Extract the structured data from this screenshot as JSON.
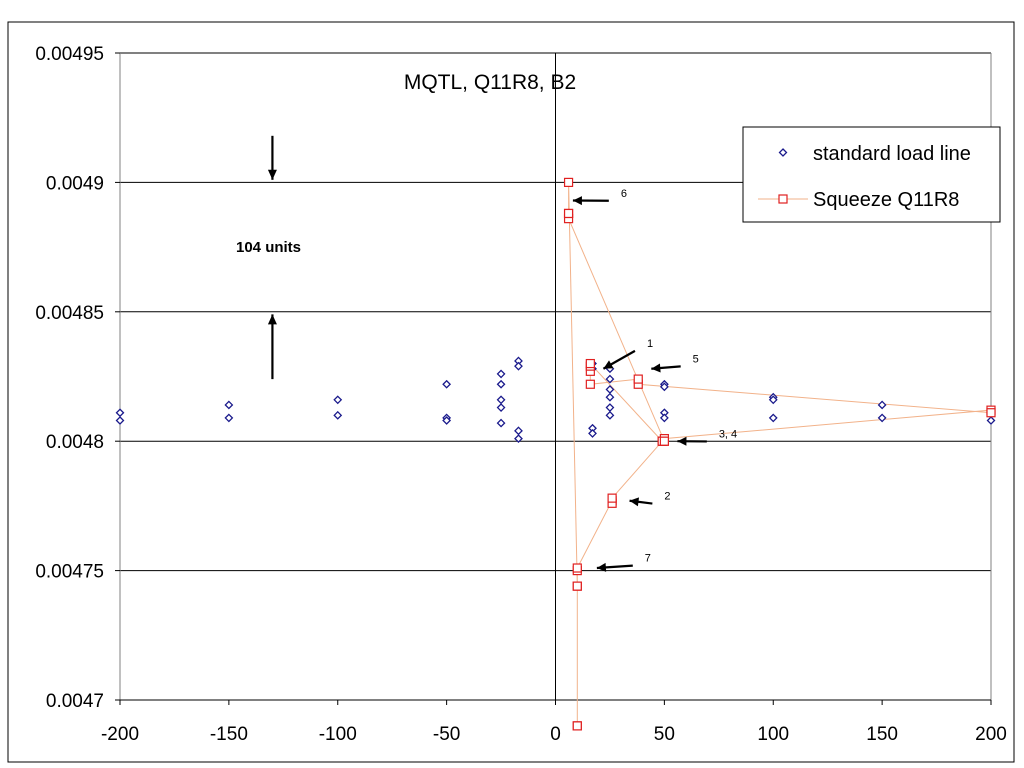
{
  "chart_data": {
    "type": "scatter",
    "title": "MQTL, Q11R8, B2",
    "xlabel": "",
    "ylabel": "",
    "xlim": [
      -200,
      200
    ],
    "ylim": [
      0.0047,
      0.00495
    ],
    "xticks": [
      "-200",
      "-150",
      "-100",
      "-50",
      "0",
      "50",
      "100",
      "150",
      "200"
    ],
    "yticks": [
      "0.0047",
      "0.00475",
      "0.0048",
      "0.00485",
      "0.0049",
      "0.00495"
    ],
    "grid": "horizontal",
    "legend_position": "top-right",
    "series": [
      {
        "name": "standard load line",
        "marker": "diamond",
        "color": "#1a1a8c",
        "line": false,
        "points": [
          [
            -200,
            0.004811
          ],
          [
            -200,
            0.004808
          ],
          [
            -150,
            0.004814
          ],
          [
            -150,
            0.004809
          ],
          [
            -100,
            0.004816
          ],
          [
            -100,
            0.00481
          ],
          [
            -50,
            0.004822
          ],
          [
            -50,
            0.004809
          ],
          [
            -50,
            0.004808
          ],
          [
            -25,
            0.004826
          ],
          [
            -25,
            0.004822
          ],
          [
            -25,
            0.004816
          ],
          [
            -25,
            0.004813
          ],
          [
            -25,
            0.004807
          ],
          [
            -17,
            0.004831
          ],
          [
            -17,
            0.004829
          ],
          [
            -17,
            0.004804
          ],
          [
            -17,
            0.004801
          ],
          [
            17,
            0.00483
          ],
          [
            17,
            0.004828
          ],
          [
            17,
            0.004805
          ],
          [
            17,
            0.004803
          ],
          [
            25,
            0.004828
          ],
          [
            25,
            0.004824
          ],
          [
            25,
            0.00482
          ],
          [
            25,
            0.004817
          ],
          [
            25,
            0.004813
          ],
          [
            25,
            0.00481
          ],
          [
            50,
            0.004822
          ],
          [
            50,
            0.004821
          ],
          [
            50,
            0.004811
          ],
          [
            50,
            0.004809
          ],
          [
            100,
            0.004817
          ],
          [
            100,
            0.004816
          ],
          [
            100,
            0.004809
          ],
          [
            150,
            0.004814
          ],
          [
            150,
            0.004809
          ],
          [
            200,
            0.004811
          ],
          [
            200,
            0.004808
          ]
        ]
      },
      {
        "name": "Squeeze Q11R8",
        "marker": "square",
        "color": "#e02020",
        "line": true,
        "lineColor": "#f2b28a",
        "points": [
          [
            10,
            0.00469
          ],
          [
            10,
            0.004744
          ],
          [
            10,
            0.00475
          ],
          [
            10,
            0.004751
          ],
          [
            26,
            0.004777
          ],
          [
            26,
            0.004776
          ],
          [
            26,
            0.004778
          ],
          [
            49,
            0.0048
          ],
          [
            50,
            0.0048
          ],
          [
            50,
            0.004801
          ],
          [
            200,
            0.004812
          ],
          [
            200,
            0.004811
          ],
          [
            38,
            0.004822
          ],
          [
            38,
            0.004824
          ],
          [
            16,
            0.004822
          ],
          [
            16,
            0.004827
          ],
          [
            16,
            0.004829
          ],
          [
            16,
            0.00483
          ],
          [
            49,
            0.0048
          ],
          [
            50,
            0.0048
          ],
          [
            6,
            0.004886
          ],
          [
            6,
            0.004888
          ],
          [
            6,
            0.004888
          ],
          [
            6,
            0.0049
          ],
          [
            10,
            0.004744
          ],
          [
            10,
            0.00469
          ]
        ]
      }
    ],
    "annotations": [
      {
        "text": "1",
        "x": 42,
        "y": 0.004838,
        "arrow_to": [
          22,
          0.004828
        ]
      },
      {
        "text": "2",
        "x": 50,
        "y": 0.004779,
        "arrow_to": [
          34,
          0.004777
        ]
      },
      {
        "text": "3, 4",
        "x": 75,
        "y": 0.004803,
        "arrow_to": [
          56,
          0.0048
        ]
      },
      {
        "text": "5",
        "x": 63,
        "y": 0.004832,
        "arrow_to": [
          44,
          0.004828
        ]
      },
      {
        "text": "6",
        "x": 30,
        "y": 0.004896,
        "arrow_to": [
          8,
          0.004893
        ]
      },
      {
        "text": "7",
        "x": 41,
        "y": 0.004755,
        "arrow_to": [
          19,
          0.004751
        ]
      }
    ],
    "bracket": {
      "label": "104 units",
      "x": -130,
      "upper_arrow": {
        "from": 0.004918,
        "to": 0.004901
      },
      "lower_arrow": {
        "from": 0.004824,
        "to": 0.004849
      }
    }
  }
}
